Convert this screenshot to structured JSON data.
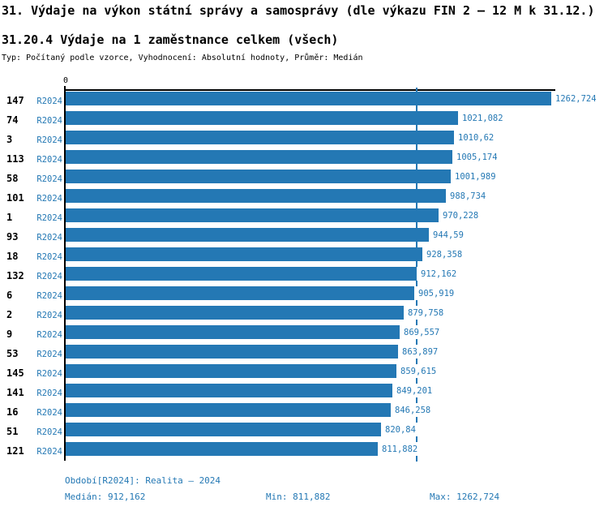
{
  "header": {
    "title": "31. Výdaje na výkon státní správy a samosprávy (dle výkazu FIN 2 – 12 M k 31.12.)",
    "subtitle": "31.20.4 Výdaje na 1 zaměstnance celkem (všech)",
    "meta": "Typ: Počítaný podle vzorce, Vyhodnocení: Absolutní hodnoty, Průměr: Medián"
  },
  "chart_data": {
    "type": "bar",
    "orientation": "horizontal",
    "axis_zero_label": "0",
    "axis_min": 0,
    "median_value": 912.162,
    "max_value": 1262.724,
    "grid": "off",
    "colors": {
      "bar": "#2478B4",
      "value_text": "#2478B4",
      "period_text": "#2478B4",
      "footer_text": "#2478B4",
      "axis": "#000000",
      "median_line": "#2478B4"
    },
    "rows": [
      {
        "id": "147",
        "period": "R2024",
        "value": 1262.724,
        "label": "1262,724"
      },
      {
        "id": "74",
        "period": "R2024",
        "value": 1021.082,
        "label": "1021,082"
      },
      {
        "id": "3",
        "period": "R2024",
        "value": 1010.62,
        "label": "1010,62"
      },
      {
        "id": "113",
        "period": "R2024",
        "value": 1005.174,
        "label": "1005,174"
      },
      {
        "id": "58",
        "period": "R2024",
        "value": 1001.989,
        "label": "1001,989"
      },
      {
        "id": "101",
        "period": "R2024",
        "value": 988.734,
        "label": "988,734"
      },
      {
        "id": "1",
        "period": "R2024",
        "value": 970.228,
        "label": "970,228"
      },
      {
        "id": "93",
        "period": "R2024",
        "value": 944.59,
        "label": "944,59"
      },
      {
        "id": "18",
        "period": "R2024",
        "value": 928.358,
        "label": "928,358"
      },
      {
        "id": "132",
        "period": "R2024",
        "value": 912.162,
        "label": "912,162"
      },
      {
        "id": "6",
        "period": "R2024",
        "value": 905.919,
        "label": "905,919"
      },
      {
        "id": "2",
        "period": "R2024",
        "value": 879.758,
        "label": "879,758"
      },
      {
        "id": "9",
        "period": "R2024",
        "value": 869.557,
        "label": "869,557"
      },
      {
        "id": "53",
        "period": "R2024",
        "value": 863.897,
        "label": "863,897"
      },
      {
        "id": "145",
        "period": "R2024",
        "value": 859.615,
        "label": "859,615"
      },
      {
        "id": "141",
        "period": "R2024",
        "value": 849.201,
        "label": "849,201"
      },
      {
        "id": "16",
        "period": "R2024",
        "value": 846.258,
        "label": "846,258"
      },
      {
        "id": "51",
        "period": "R2024",
        "value": 820.84,
        "label": "820,84"
      },
      {
        "id": "121",
        "period": "R2024",
        "value": 811.882,
        "label": "811,882"
      }
    ]
  },
  "footer": {
    "period_line": "Období[R2024]: Realita – 2024",
    "median": "Medián: 912,162",
    "min": "Min: 811,882",
    "max": "Max: 1262,724"
  }
}
